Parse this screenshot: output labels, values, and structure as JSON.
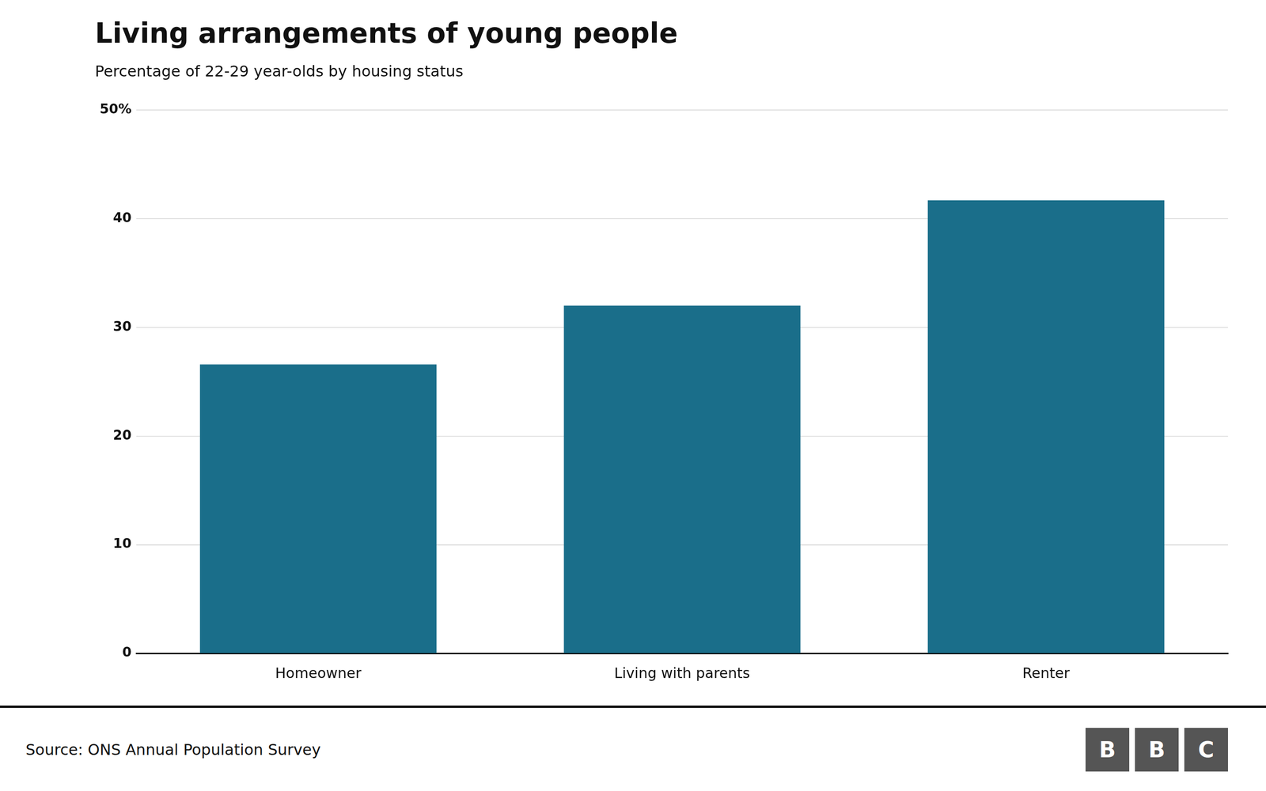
{
  "chart_data": {
    "type": "bar",
    "title": "Living arrangements of young people",
    "subtitle": "Percentage of 22-29 year-olds by housing status",
    "categories": [
      "Homeowner",
      "Living with parents",
      "Renter"
    ],
    "values": [
      26.6,
      32.0,
      41.7
    ],
    "color": "#1a6e8a",
    "ylim": [
      0,
      50
    ],
    "yticks": [
      0,
      10,
      20,
      30,
      40,
      {
        "value": 50,
        "label": "50%"
      }
    ],
    "grid": true,
    "source": "Source: ONS Annual Population Survey",
    "logo": [
      "B",
      "B",
      "C"
    ]
  }
}
